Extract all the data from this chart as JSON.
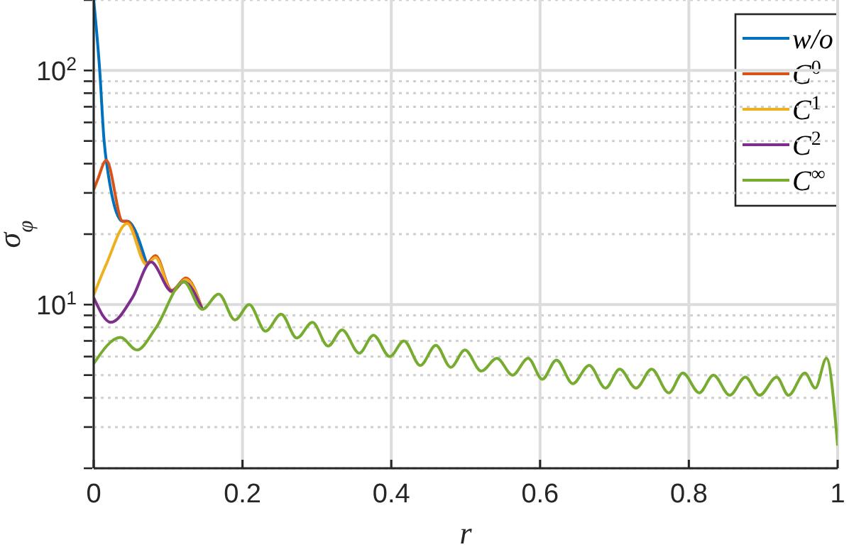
{
  "chart_data": {
    "type": "line",
    "xlabel": "r",
    "ylabel": "σ$_{φ}$",
    "log": "y",
    "grid": true,
    "legend": "top right",
    "marker": "none",
    "line_style": "solid",
    "xlim": [
      0,
      1
    ],
    "xticks": [
      0,
      0.2,
      0.4,
      0.6,
      0.8,
      1
    ],
    "ylim": [
      2,
      200
    ],
    "yticks": [
      {
        "value": 2,
        "label": null
      },
      {
        "value": 3,
        "label": null
      },
      {
        "value": 4,
        "label": null
      },
      {
        "value": 5,
        "label": null
      },
      {
        "value": 6,
        "label": null
      },
      {
        "value": 7,
        "label": null
      },
      {
        "value": 8,
        "label": null
      },
      {
        "value": 9,
        "label": null
      },
      {
        "value": 10,
        "label": "10$^{1}$"
      },
      {
        "value": 20,
        "label": null
      },
      {
        "value": 30,
        "label": null
      },
      {
        "value": 40,
        "label": null
      },
      {
        "value": 50,
        "label": null
      },
      {
        "value": 60,
        "label": null
      },
      {
        "value": 70,
        "label": null
      },
      {
        "value": 80,
        "label": null
      },
      {
        "value": 90,
        "label": null
      },
      {
        "value": 100,
        "label": "10$^{2}$"
      },
      {
        "value": 200,
        "label": null
      }
    ],
    "series": [
      {
        "name": "w/o",
        "color": "#0072bd",
        "x": [
          0,
          0.008,
          0.014,
          0.017,
          0.039,
          0.045,
          0.071
        ],
        "values": [
          200,
          101,
          50,
          41,
          22.7,
          22.7,
          15
        ]
      },
      {
        "name": "C$^{0}$",
        "color": "#d95319",
        "x": [
          0,
          0.005,
          0.017,
          0.039,
          0.045,
          0.071,
          0.083,
          0.105,
          0.124,
          0.146
        ],
        "values": [
          31,
          34,
          41.3,
          22.7,
          22.7,
          15,
          16.2,
          11.5,
          13,
          9.55
        ]
      },
      {
        "name": "C$^{1}$",
        "color": "#edb120",
        "x": [
          0,
          0.017,
          0.045,
          0.071,
          0.083,
          0.105,
          0.124,
          0.146
        ],
        "values": [
          11,
          14.9,
          22.2,
          14.8,
          15.9,
          11.3,
          12.8,
          9.55
        ]
      },
      {
        "name": "C$^{2}$",
        "color": "#7e2f8e",
        "x": [
          0,
          0.023,
          0.052,
          0.077,
          0.105,
          0.121,
          0.146
        ],
        "values": [
          10.7,
          8.4,
          10.7,
          15.2,
          11.4,
          12.5,
          9.55
        ]
      },
      {
        "name": "C$^{∞}$",
        "color": "#77ac30",
        "x": [
          0,
          0.036,
          0.058,
          0.083,
          0.121,
          0.146,
          0.168,
          0.19,
          0.209,
          0.231,
          0.252,
          0.273,
          0.294,
          0.315,
          0.334,
          0.357,
          0.376,
          0.398,
          0.417,
          0.439,
          0.46,
          0.48,
          0.499,
          0.521,
          0.542,
          0.563,
          0.584,
          0.603,
          0.622,
          0.644,
          0.666,
          0.688,
          0.707,
          0.729,
          0.75,
          0.773,
          0.792,
          0.814,
          0.833,
          0.855,
          0.876,
          0.895,
          0.918,
          0.934,
          0.956,
          0.97,
          0.985,
          1
        ],
        "values": [
          5.6,
          7.25,
          6.4,
          7.9,
          12.5,
          9.55,
          11.1,
          8.6,
          10,
          7.7,
          9.1,
          7.2,
          8.4,
          6.65,
          7.8,
          6.2,
          7.4,
          6,
          7,
          5.5,
          6.7,
          5.4,
          6.4,
          5.2,
          5.9,
          5,
          5.9,
          4.8,
          5.8,
          4.6,
          5.5,
          4.4,
          5.3,
          4.4,
          5.3,
          4.2,
          5.1,
          4.2,
          5,
          4.1,
          4.9,
          4.1,
          4.9,
          4.1,
          5.1,
          4.4,
          5.9,
          2.5
        ]
      }
    ]
  }
}
